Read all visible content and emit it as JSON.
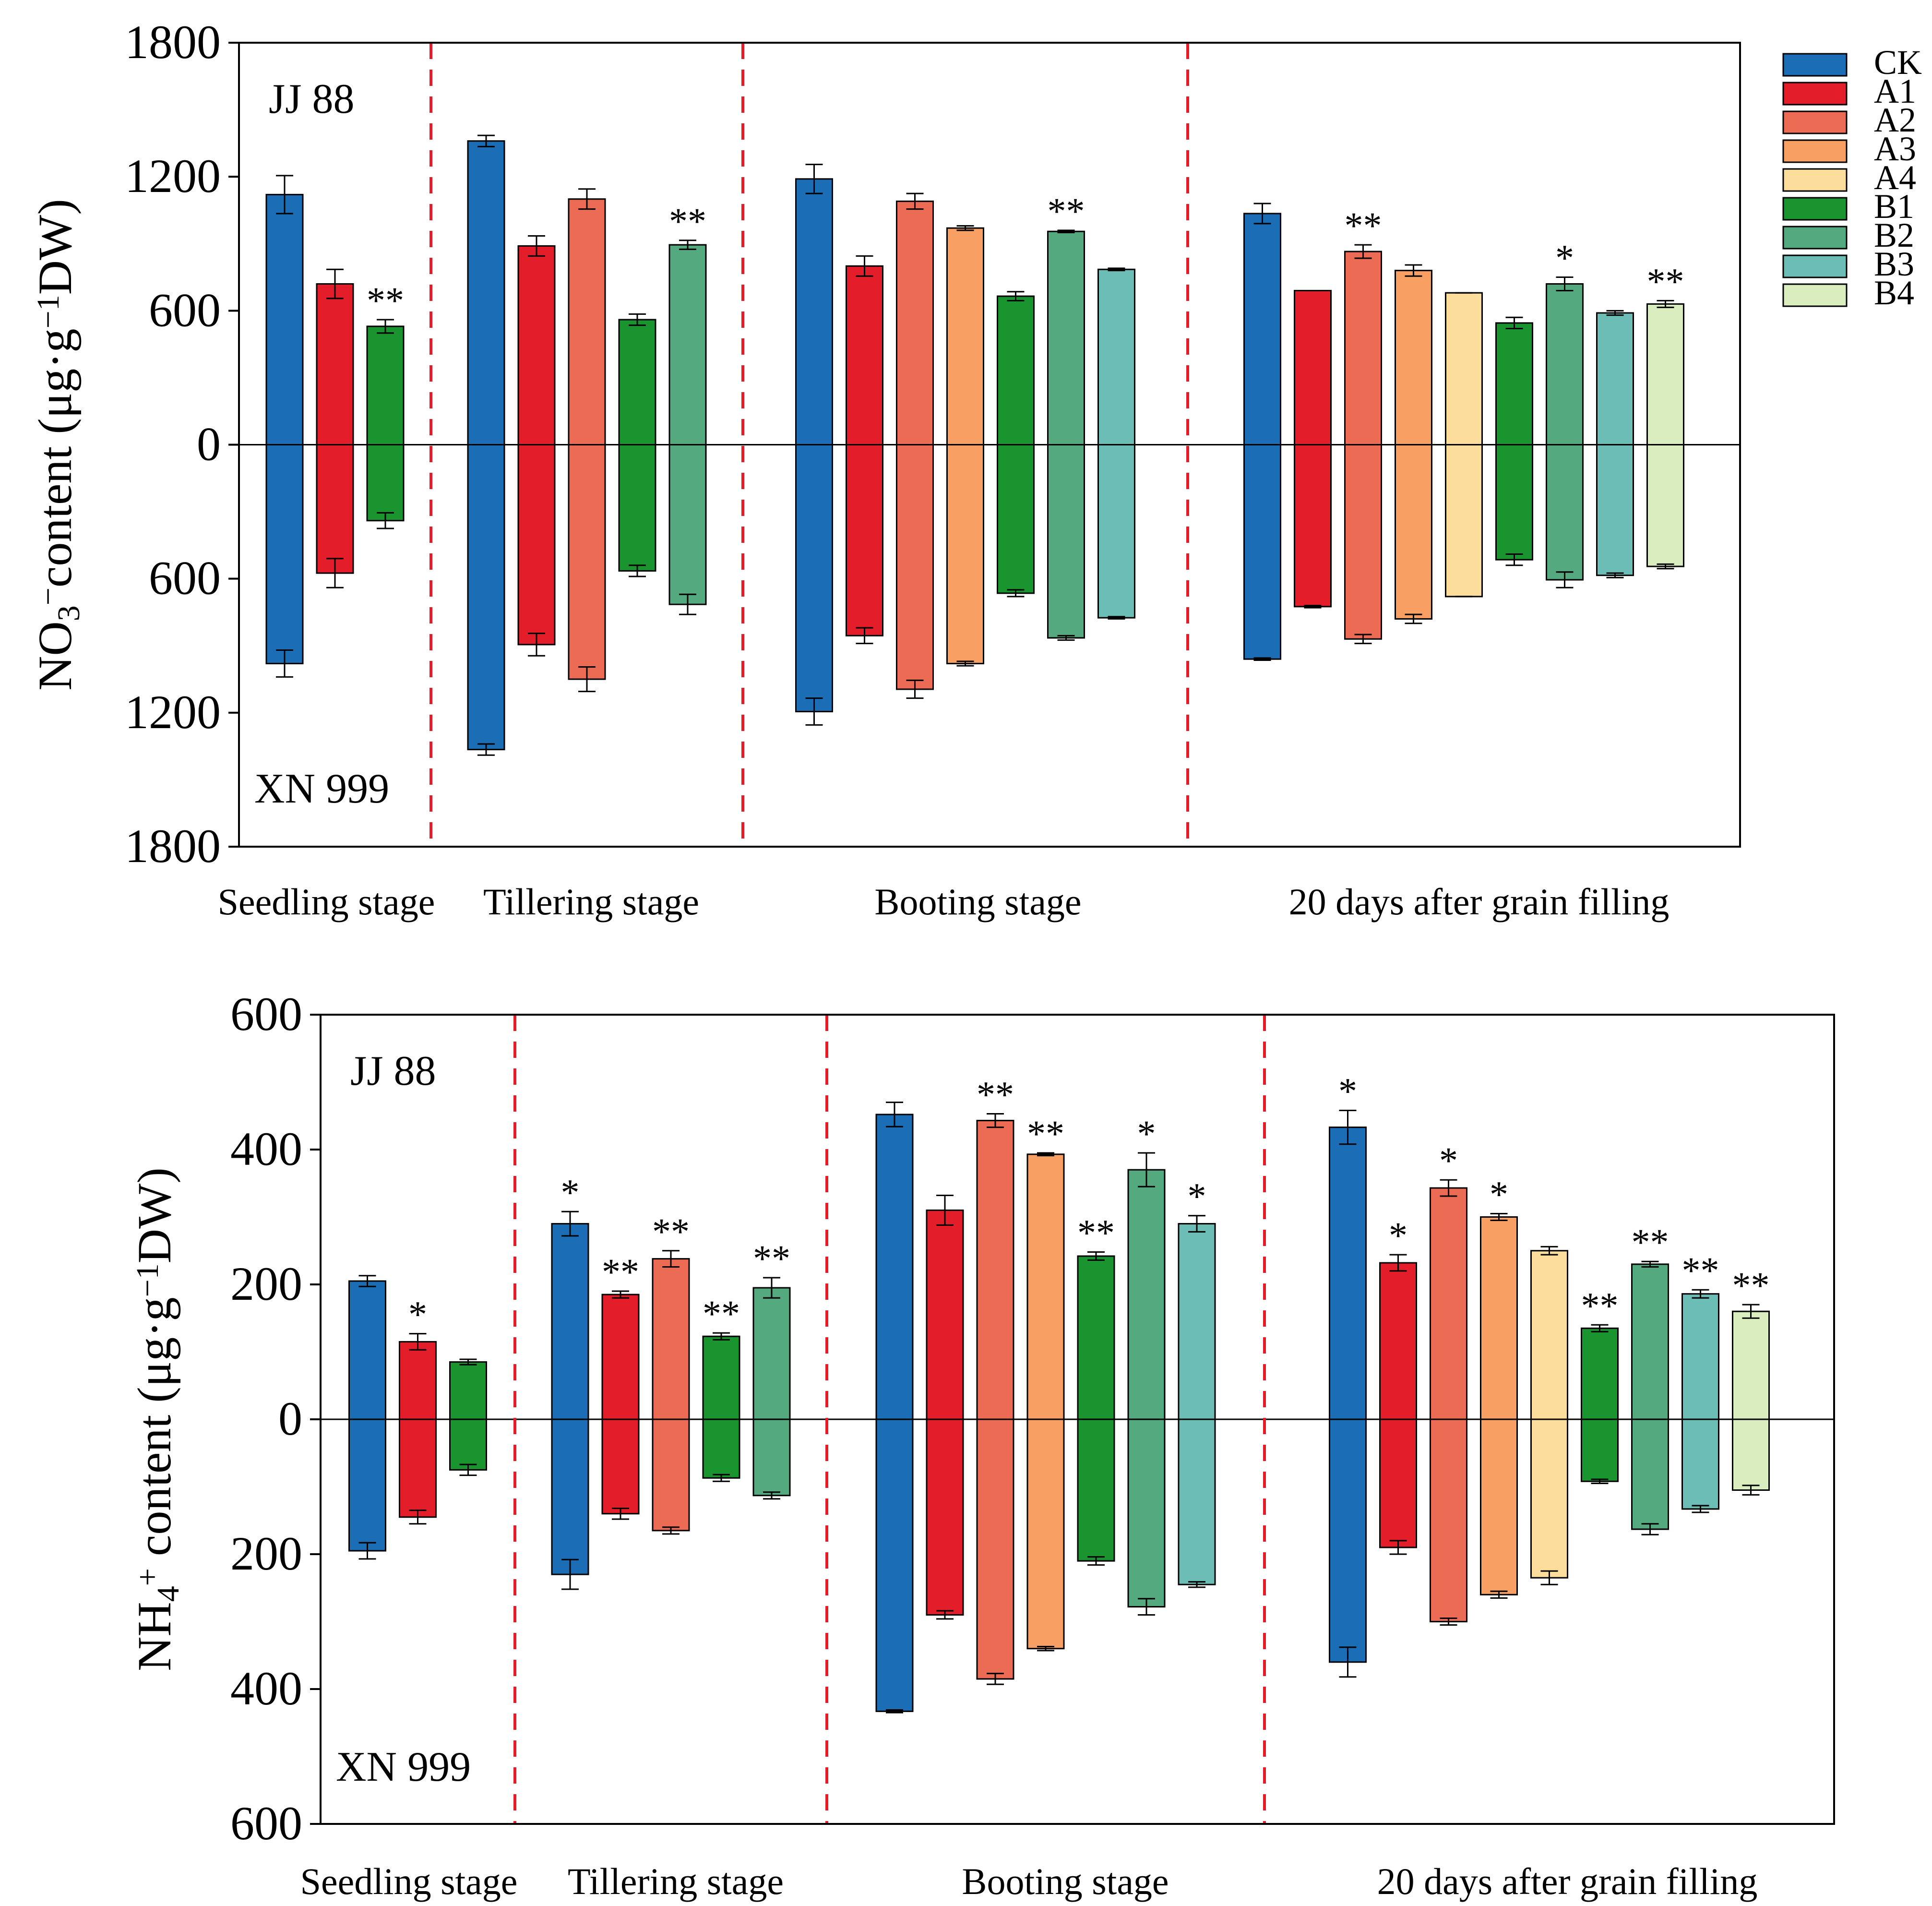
{
  "legend": [
    {
      "label": "CK",
      "color": "#1b6eb5"
    },
    {
      "label": "A1",
      "color": "#e31e2a"
    },
    {
      "label": "A2",
      "color": "#ec6b54"
    },
    {
      "label": "A3",
      "color": "#f8a063"
    },
    {
      "label": "A4",
      "color": "#fddd9c"
    },
    {
      "label": "B1",
      "color": "#1a942f"
    },
    {
      "label": "B2",
      "color": "#55a97e"
    },
    {
      "label": "B3",
      "color": "#6cbdb6"
    },
    {
      "label": "B4",
      "color": "#d9edbf"
    }
  ],
  "chart_data": [
    {
      "type": "bar",
      "title": "NO3- content",
      "ylabel": "NO3−content (μg·g−1DW)",
      "ylabel_parts": {
        "base": "NO",
        "sub": "3",
        "sup": "−",
        "mid": "content (μg·g",
        "sup2": "−1",
        "end": "DW)"
      },
      "ylim": [
        -1800,
        1800
      ],
      "ytick_values": [
        1800,
        1200,
        600,
        0,
        -600,
        -1200,
        -1800
      ],
      "ytick_labels": [
        "1800",
        "1200",
        "600",
        "0",
        "600",
        "1200",
        "1800"
      ],
      "top_label": "JJ 88",
      "bottom_label": "XN 999",
      "stages": [
        {
          "name": "Seedling stage",
          "bars": [
            {
              "t": "CK",
              "up": 1120,
              "up_err": 85,
              "down": 980,
              "down_err": 60,
              "sig": ""
            },
            {
              "t": "A1",
              "up": 720,
              "up_err": 65,
              "down": 575,
              "down_err": 65,
              "sig": ""
            },
            {
              "t": "B1",
              "up": 530,
              "up_err": 30,
              "down": 340,
              "down_err": 35,
              "sig": "**"
            }
          ]
        },
        {
          "name": "Tillering stage",
          "bars": [
            {
              "t": "CK",
              "up": 1360,
              "up_err": 25,
              "down": 1365,
              "down_err": 25,
              "sig": ""
            },
            {
              "t": "A1",
              "up": 890,
              "up_err": 45,
              "down": 895,
              "down_err": 50,
              "sig": ""
            },
            {
              "t": "A2",
              "up": 1100,
              "up_err": 45,
              "down": 1050,
              "down_err": 55,
              "sig": ""
            },
            {
              "t": "B1",
              "up": 560,
              "up_err": 25,
              "down": 565,
              "down_err": 25,
              "sig": ""
            },
            {
              "t": "B2",
              "up": 895,
              "up_err": 20,
              "down": 715,
              "down_err": 45,
              "sig": "**"
            }
          ]
        },
        {
          "name": "Booting stage",
          "bars": [
            {
              "t": "CK",
              "up": 1190,
              "up_err": 65,
              "down": 1195,
              "down_err": 60,
              "sig": ""
            },
            {
              "t": "A1",
              "up": 800,
              "up_err": 45,
              "down": 855,
              "down_err": 35,
              "sig": ""
            },
            {
              "t": "A2",
              "up": 1090,
              "up_err": 35,
              "down": 1095,
              "down_err": 40,
              "sig": ""
            },
            {
              "t": "A3",
              "up": 970,
              "up_err": 10,
              "down": 980,
              "down_err": 10,
              "sig": ""
            },
            {
              "t": "B1",
              "up": 665,
              "up_err": 20,
              "down": 665,
              "down_err": 15,
              "sig": ""
            },
            {
              "t": "B2",
              "up": 955,
              "up_err": 5,
              "down": 865,
              "down_err": 10,
              "sig": "**"
            },
            {
              "t": "B3",
              "up": 785,
              "up_err": 5,
              "down": 775,
              "down_err": 5,
              "sig": ""
            }
          ]
        },
        {
          "name": "20 days after grain filling",
          "bars": [
            {
              "t": "CK",
              "up": 1035,
              "up_err": 45,
              "down": 960,
              "down_err": 5,
              "sig": ""
            },
            {
              "t": "A1",
              "up": 690,
              "up_err": 0,
              "down": 725,
              "down_err": 5,
              "sig": ""
            },
            {
              "t": "A2",
              "up": 865,
              "up_err": 30,
              "down": 870,
              "down_err": 20,
              "sig": "**"
            },
            {
              "t": "A3",
              "up": 780,
              "up_err": 25,
              "down": 780,
              "down_err": 20,
              "sig": ""
            },
            {
              "t": "A4",
              "up": 680,
              "up_err": 0,
              "down": 680,
              "down_err": 0,
              "sig": ""
            },
            {
              "t": "B1",
              "up": 545,
              "up_err": 25,
              "down": 515,
              "down_err": 25,
              "sig": ""
            },
            {
              "t": "B2",
              "up": 720,
              "up_err": 30,
              "down": 605,
              "down_err": 35,
              "sig": "*"
            },
            {
              "t": "B3",
              "up": 590,
              "up_err": 10,
              "down": 585,
              "down_err": 10,
              "sig": ""
            },
            {
              "t": "B4",
              "up": 630,
              "up_err": 15,
              "down": 545,
              "down_err": 10,
              "sig": "**"
            }
          ]
        }
      ]
    },
    {
      "type": "bar",
      "title": "NH4+ content",
      "ylabel": "NH4+ content (μg·g−1DW)",
      "ylabel_parts": {
        "base": "NH",
        "sub": "4",
        "sup": "+",
        "mid": " content (μg·g",
        "sup2": "−1",
        "end": "DW)"
      },
      "ylim": [
        -600,
        600
      ],
      "ytick_values": [
        600,
        400,
        200,
        0,
        -200,
        -400,
        -600
      ],
      "ytick_labels": [
        "600",
        "400",
        "200",
        "0",
        "200",
        "400",
        "600"
      ],
      "top_label": "JJ 88",
      "bottom_label": "XN 999",
      "stages": [
        {
          "name": "Seedling stage",
          "bars": [
            {
              "t": "CK",
              "up": 205,
              "up_err": 8,
              "down": 195,
              "down_err": 12,
              "sig": ""
            },
            {
              "t": "A1",
              "up": 115,
              "up_err": 12,
              "down": 145,
              "down_err": 10,
              "sig": "*"
            },
            {
              "t": "B1",
              "up": 85,
              "up_err": 4,
              "down": 75,
              "down_err": 8,
              "sig": ""
            }
          ]
        },
        {
          "name": "Tillering stage",
          "bars": [
            {
              "t": "CK",
              "up": 290,
              "up_err": 18,
              "down": 230,
              "down_err": 22,
              "sig": "*"
            },
            {
              "t": "A1",
              "up": 185,
              "up_err": 5,
              "down": 140,
              "down_err": 8,
              "sig": "**"
            },
            {
              "t": "A2",
              "up": 238,
              "up_err": 12,
              "down": 165,
              "down_err": 5,
              "sig": "**"
            },
            {
              "t": "B1",
              "up": 123,
              "up_err": 5,
              "down": 87,
              "down_err": 5,
              "sig": "**"
            },
            {
              "t": "B2",
              "up": 195,
              "up_err": 15,
              "down": 113,
              "down_err": 5,
              "sig": "**"
            }
          ]
        },
        {
          "name": "Booting stage",
          "bars": [
            {
              "t": "CK",
              "up": 452,
              "up_err": 18,
              "down": 433,
              "down_err": 2,
              "sig": ""
            },
            {
              "t": "A1",
              "up": 310,
              "up_err": 22,
              "down": 290,
              "down_err": 6,
              "sig": ""
            },
            {
              "t": "A2",
              "up": 443,
              "up_err": 10,
              "down": 385,
              "down_err": 8,
              "sig": "**"
            },
            {
              "t": "A3",
              "up": 393,
              "up_err": 2,
              "down": 340,
              "down_err": 3,
              "sig": "**"
            },
            {
              "t": "B1",
              "up": 242,
              "up_err": 6,
              "down": 210,
              "down_err": 6,
              "sig": "**"
            },
            {
              "t": "B2",
              "up": 370,
              "up_err": 25,
              "down": 278,
              "down_err": 12,
              "sig": "*"
            },
            {
              "t": "B3",
              "up": 290,
              "up_err": 12,
              "down": 245,
              "down_err": 4,
              "sig": "*"
            }
          ]
        },
        {
          "name": "20 days after grain filling",
          "bars": [
            {
              "t": "CK",
              "up": 433,
              "up_err": 25,
              "down": 360,
              "down_err": 22,
              "sig": "*"
            },
            {
              "t": "A1",
              "up": 232,
              "up_err": 12,
              "down": 190,
              "down_err": 10,
              "sig": "*"
            },
            {
              "t": "A2",
              "up": 343,
              "up_err": 12,
              "down": 300,
              "down_err": 5,
              "sig": "*"
            },
            {
              "t": "A3",
              "up": 300,
              "up_err": 5,
              "down": 260,
              "down_err": 5,
              "sig": "*"
            },
            {
              "t": "A4",
              "up": 250,
              "up_err": 6,
              "down": 235,
              "down_err": 10,
              "sig": ""
            },
            {
              "t": "B1",
              "up": 135,
              "up_err": 5,
              "down": 92,
              "down_err": 3,
              "sig": "**"
            },
            {
              "t": "B2",
              "up": 230,
              "up_err": 4,
              "down": 163,
              "down_err": 8,
              "sig": "**"
            },
            {
              "t": "B3",
              "up": 186,
              "up_err": 6,
              "down": 133,
              "down_err": 5,
              "sig": "**"
            },
            {
              "t": "B4",
              "up": 160,
              "up_err": 10,
              "down": 105,
              "down_err": 7,
              "sig": "**"
            }
          ]
        }
      ]
    }
  ]
}
